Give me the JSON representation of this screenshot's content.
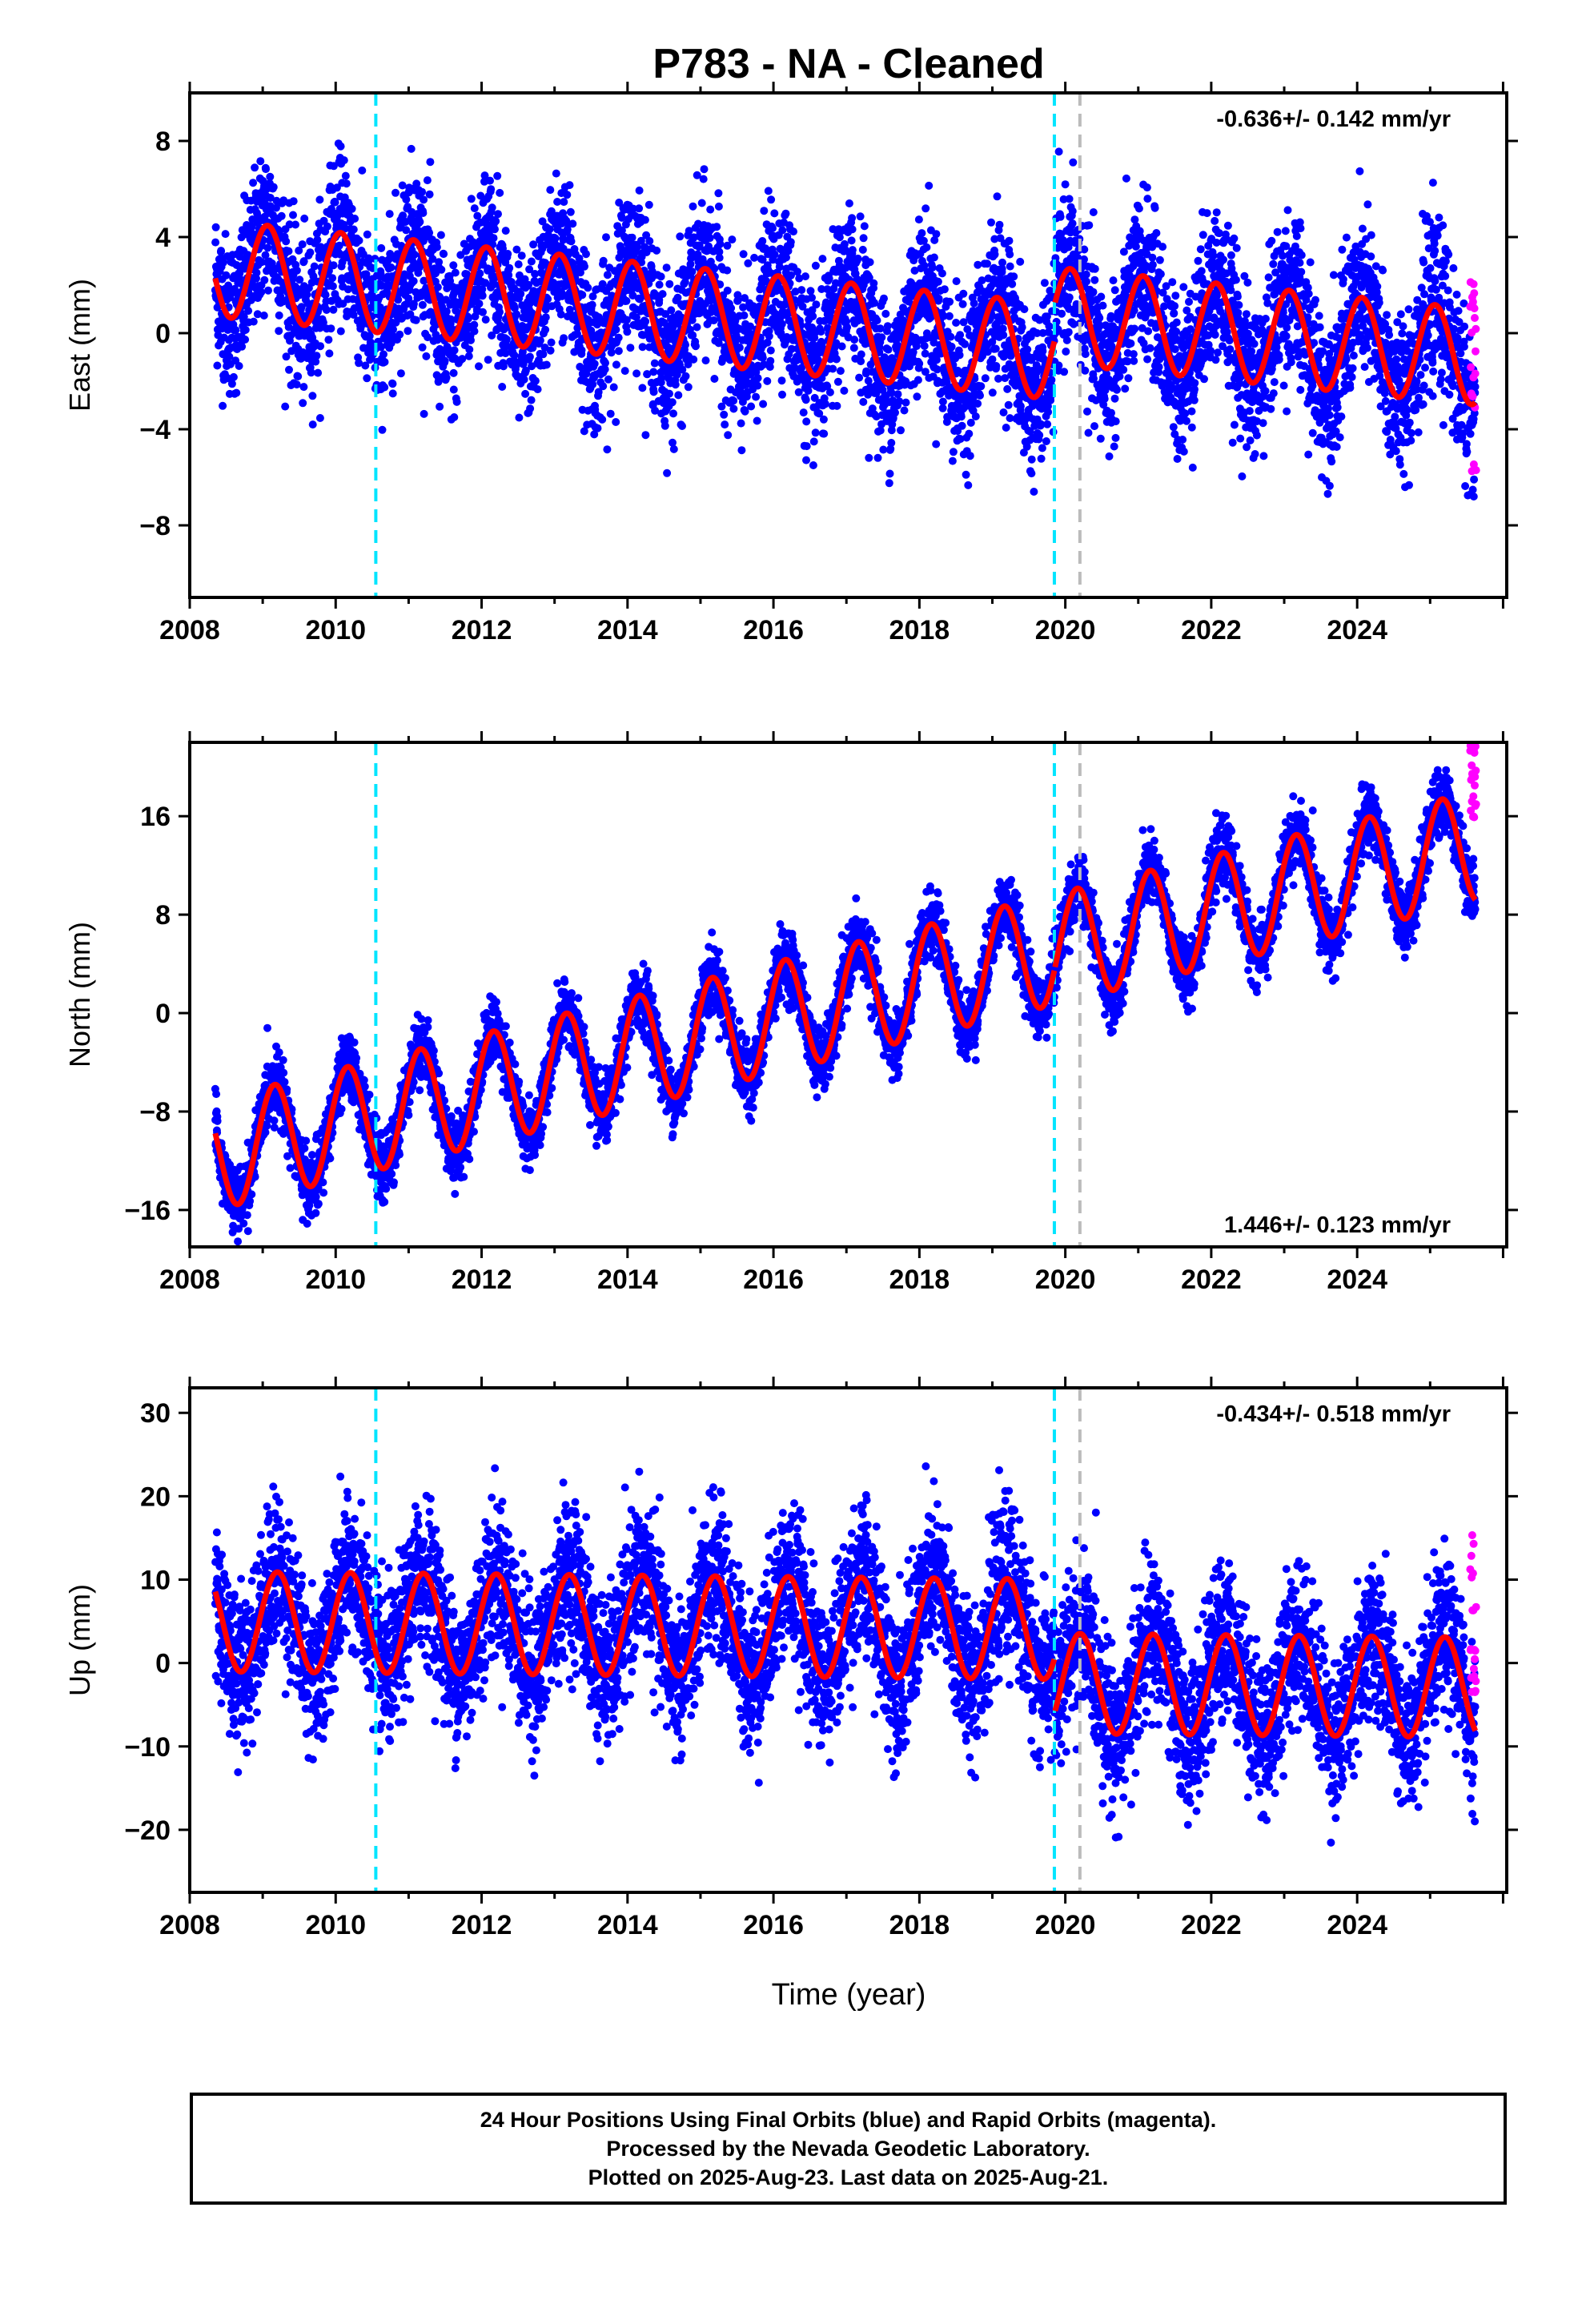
{
  "title": "P783  - NA - Cleaned",
  "xlabel": "Time (year)",
  "footer": {
    "line1": "24 Hour Positions Using Final Orbits (blue) and Rapid Orbits (magenta).",
    "line2": "Processed by the Nevada Geodetic Laboratory.",
    "line3": "Plotted on 2025-Aug-23. Last data on 2025-Aug-21."
  },
  "colors": {
    "final_orbits": "#0000ff",
    "rapid_orbits": "#ff00ff",
    "model_fit": "#ff0000",
    "equipment_change_line": "#00e5ff",
    "event_line": "#bbbbbb"
  },
  "chart_data": [
    {
      "type": "scatter",
      "component": "east",
      "ylabel": "East (mm)",
      "rate_label": "-0.636+/- 0.142 mm/yr",
      "rate_label_position": "top-right",
      "xlim": [
        2008,
        2026.05
      ],
      "ylim": [
        -11,
        10
      ],
      "xticks": [
        2008,
        2010,
        2012,
        2014,
        2016,
        2018,
        2020,
        2022,
        2024
      ],
      "yticks": [
        8,
        4,
        0,
        -4,
        -8
      ],
      "ytick_labels": [
        "8",
        "4",
        "0",
        "−4",
        "−8"
      ],
      "fit": {
        "start": 2008.35,
        "end": 2025.62,
        "offset": 2.8,
        "rate": -0.3,
        "amplitude": 2.0,
        "phase": 1.15,
        "step_at": 2019.85,
        "step_size": 1.5,
        "noise": 1.6
      },
      "rapid": {
        "start": 2025.55,
        "end": 2025.63,
        "ymin": -6,
        "ymax": 2.8
      },
      "vlines": [
        {
          "x": 2010.55,
          "color": "#00e5ff"
        },
        {
          "x": 2019.85,
          "color": "#00e5ff"
        },
        {
          "x": 2020.2,
          "color": "#bbbbbb"
        }
      ]
    },
    {
      "type": "scatter",
      "component": "north",
      "ylabel": "North (mm)",
      "rate_label": "1.446+/- 0.123 mm/yr",
      "rate_label_position": "bottom-right",
      "xlim": [
        2008,
        2026.05
      ],
      "ylim": [
        -19,
        22
      ],
      "xticks": [
        2008,
        2010,
        2012,
        2014,
        2016,
        2018,
        2020,
        2022,
        2024
      ],
      "yticks": [
        16,
        8,
        0,
        -8,
        -16
      ],
      "ytick_labels": [
        "16",
        "8",
        "0",
        "−8",
        "−16"
      ],
      "fit": {
        "start": 2008.35,
        "end": 2025.62,
        "offset": -12.0,
        "rate": 1.45,
        "amplitude": 4.5,
        "phase": 0.55,
        "step_at": 2019.85,
        "step_size": 0.0,
        "noise": 1.3
      },
      "rapid": {
        "start": 2025.55,
        "end": 2025.63,
        "ymin": 14.5,
        "ymax": 22
      },
      "vlines": [
        {
          "x": 2010.55,
          "color": "#00e5ff"
        },
        {
          "x": 2019.85,
          "color": "#00e5ff"
        },
        {
          "x": 2020.2,
          "color": "#bbbbbb"
        }
      ]
    },
    {
      "type": "scatter",
      "component": "up",
      "ylabel": "Up (mm)",
      "rate_label": "-0.434+/- 0.518 mm/yr",
      "rate_label_position": "top-right",
      "xlim": [
        2008,
        2026.05
      ],
      "ylim": [
        -27.5,
        33
      ],
      "xticks": [
        2008,
        2010,
        2012,
        2014,
        2016,
        2018,
        2020,
        2022,
        2024
      ],
      "yticks": [
        30,
        20,
        10,
        0,
        -10,
        -20
      ],
      "ytick_labels": [
        "30",
        "20",
        "10",
        "0",
        "−10",
        "−20"
      ],
      "fit": {
        "start": 2008.35,
        "end": 2025.62,
        "offset": 5.0,
        "rate": -0.08,
        "amplitude": 6.0,
        "phase": 0.3,
        "step_at": 2019.85,
        "step_size": -6.5,
        "noise": 4.5
      },
      "rapid": {
        "start": 2025.55,
        "end": 2025.63,
        "ymin": -5,
        "ymax": 16
      },
      "vlines": [
        {
          "x": 2010.55,
          "color": "#00e5ff"
        },
        {
          "x": 2019.85,
          "color": "#00e5ff"
        },
        {
          "x": 2020.2,
          "color": "#bbbbbb"
        }
      ]
    }
  ]
}
